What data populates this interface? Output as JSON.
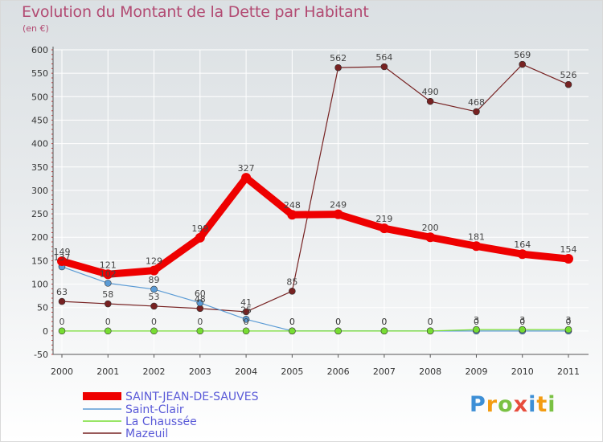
{
  "chart_data": {
    "type": "line",
    "title": "Evolution du Montant de la Dette par Habitant",
    "subtitle": "(en €)",
    "xlabel": "",
    "ylabel": "",
    "ylim": [
      -50,
      600
    ],
    "yticks": [
      -50,
      0,
      50,
      100,
      150,
      200,
      250,
      300,
      350,
      400,
      450,
      500,
      550,
      600
    ],
    "categories": [
      "2000",
      "2001",
      "2002",
      "2003",
      "2004",
      "2005",
      "2006",
      "2007",
      "2008",
      "2009",
      "2010",
      "2011"
    ],
    "legend_position": "bottom-left",
    "series": [
      {
        "name": "SAINT-JEAN-DE-SAUVES",
        "color": "#ee0000",
        "values": [
          149,
          121,
          129,
          199,
          327,
          248,
          249,
          219,
          200,
          181,
          164,
          154
        ]
      },
      {
        "name": "Saint-Clair",
        "color": "#5b9bd5",
        "values": [
          137,
          102,
          89,
          60,
          25,
          0,
          0,
          0,
          0,
          0,
          0,
          0
        ]
      },
      {
        "name": "La Chaussée",
        "color": "#77dd33",
        "values": [
          0,
          0,
          0,
          0,
          0,
          0,
          0,
          0,
          0,
          3,
          3,
          3
        ]
      },
      {
        "name": "Mazeuil",
        "color": "#772222",
        "values": [
          63,
          58,
          53,
          48,
          41,
          85,
          562,
          564,
          490,
          468,
          569,
          526
        ]
      }
    ],
    "data_labels": [
      {
        "series": 0,
        "labels": [
          "149",
          "121",
          "129",
          "199",
          "327",
          "248",
          "249",
          "219",
          "200",
          "181",
          "164",
          "154"
        ]
      },
      {
        "series": 1,
        "labels": [
          "137",
          "102",
          "89",
          "60",
          "25",
          "0",
          "0",
          "0",
          "0",
          "0",
          "0",
          "0"
        ]
      },
      {
        "series": 2,
        "labels": [
          "0",
          "0",
          "0",
          "0",
          "0",
          "0",
          "0",
          "0",
          "0",
          "3",
          "3",
          "3"
        ]
      },
      {
        "series": 3,
        "labels": [
          "63",
          "58",
          "53",
          "48",
          "41",
          "85",
          "562",
          "564",
          "490",
          "468",
          "569",
          "526"
        ]
      }
    ]
  },
  "branding": {
    "logo_text": "Proxiti",
    "logo_letters": [
      {
        "ch": "P",
        "color": "#3d8fd6"
      },
      {
        "ch": "r",
        "color": "#f39c12"
      },
      {
        "ch": "o",
        "color": "#7ac143"
      },
      {
        "ch": "x",
        "color": "#e74c3c"
      },
      {
        "ch": "i",
        "color": "#3d8fd6"
      },
      {
        "ch": "t",
        "color": "#f39c12"
      },
      {
        "ch": "i",
        "color": "#7ac143"
      }
    ]
  }
}
